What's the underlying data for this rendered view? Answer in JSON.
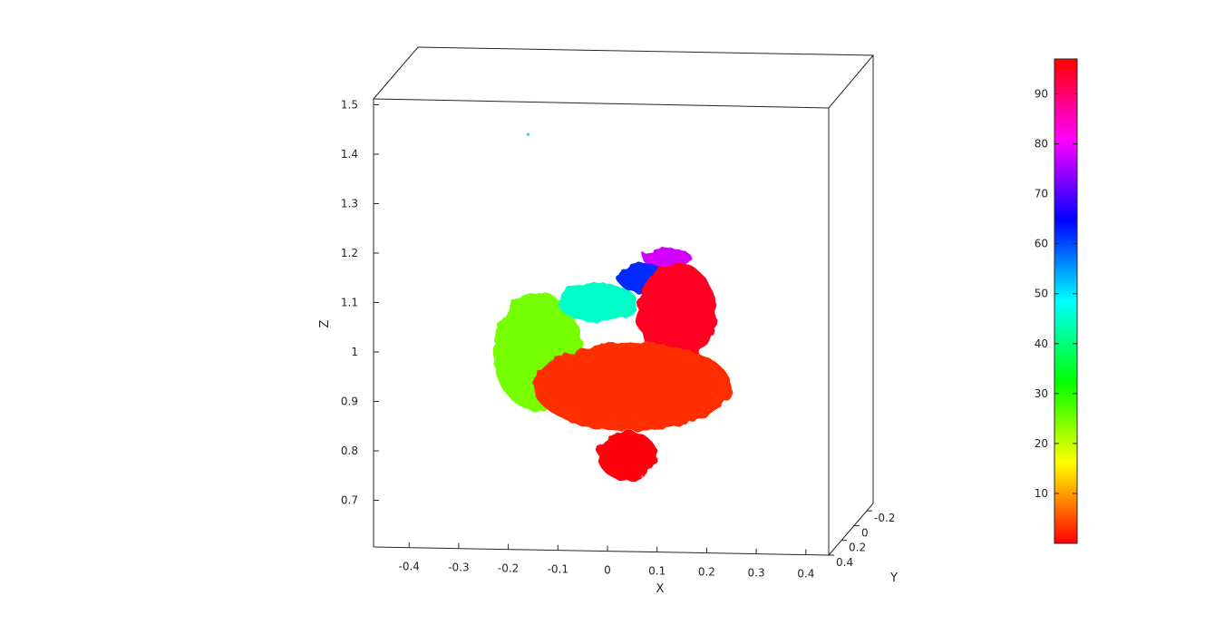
{
  "chart_data": {
    "type": "scatter",
    "title": "",
    "xlabel": "X",
    "ylabel": "Y",
    "zlabel": "Z",
    "xlim": [
      -0.45,
      0.45
    ],
    "ylim": [
      -0.3,
      0.4
    ],
    "zlim": [
      0.6,
      1.5
    ],
    "x_ticks": [
      "-0.4",
      "-0.3",
      "-0.2",
      "-0.1",
      "0",
      "0.1",
      "0.2",
      "0.3",
      "0.4"
    ],
    "y_ticks": [
      "-0.2",
      "0",
      "0.2",
      "0.4"
    ],
    "z_ticks": [
      "0.7",
      "0.8",
      "0.9",
      "1",
      "1.1",
      "1.2",
      "1.3",
      "1.4",
      "1.5"
    ],
    "grid": false,
    "colormap": "hsv",
    "colorbar": {
      "placement": "right",
      "ticks": [
        "10",
        "20",
        "30",
        "40",
        "50",
        "60",
        "70",
        "80",
        "90"
      ],
      "range": [
        0,
        97
      ]
    },
    "clusters": [
      {
        "part": "green-arc",
        "x": -0.14,
        "z": 1.0,
        "rx": 0.09,
        "rz": 0.12,
        "value": 25
      },
      {
        "part": "cyan-band",
        "x": -0.02,
        "z": 1.1,
        "rx": 0.08,
        "rz": 0.04,
        "value": 45
      },
      {
        "part": "blue-edge",
        "x": 0.07,
        "z": 1.15,
        "rx": 0.05,
        "rz": 0.03,
        "value": 62
      },
      {
        "part": "purple-top",
        "x": 0.12,
        "z": 1.19,
        "rx": 0.05,
        "rz": 0.02,
        "value": 78
      },
      {
        "part": "upper-red",
        "x": 0.14,
        "z": 1.08,
        "rx": 0.08,
        "rz": 0.1,
        "value": 95
      },
      {
        "part": "main-red",
        "x": 0.05,
        "z": 0.93,
        "rx": 0.2,
        "rz": 0.09,
        "value": 3
      },
      {
        "part": "lower-red",
        "x": 0.04,
        "z": 0.79,
        "rx": 0.06,
        "rz": 0.05,
        "value": 96
      },
      {
        "part": "stray-point",
        "x": -0.16,
        "z": 1.44,
        "rx": 0.003,
        "rz": 0.003,
        "value": 50
      }
    ]
  }
}
